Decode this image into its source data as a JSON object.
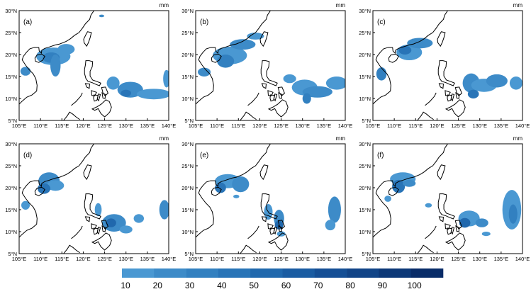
{
  "panels": [
    {
      "label": "(a)",
      "unit": "mm"
    },
    {
      "label": "(b)",
      "unit": "mm"
    },
    {
      "label": "(c)",
      "unit": "mm"
    },
    {
      "label": "(d)",
      "unit": "mm"
    },
    {
      "label": "(e)",
      "unit": "mm"
    },
    {
      "label": "(f)",
      "unit": "mm"
    }
  ],
  "lon_ticks": [
    "105°E",
    "110°E",
    "115°E",
    "120°E",
    "125°E",
    "130°E",
    "135°E",
    "140°E"
  ],
  "lat_ticks": [
    "5°N",
    "10°N",
    "15°N",
    "20°N",
    "25°N",
    "30°N"
  ],
  "colorbar": {
    "labels": [
      "10",
      "20",
      "30",
      "40",
      "50",
      "60",
      "70",
      "80",
      "90",
      "100"
    ],
    "colors": [
      "#4a98d2",
      "#3d8bc8",
      "#3280c0",
      "#2874b7",
      "#2068ad",
      "#1a5ca2",
      "#154f95",
      "#114487",
      "#0c3877",
      "#082c68"
    ]
  }
}
